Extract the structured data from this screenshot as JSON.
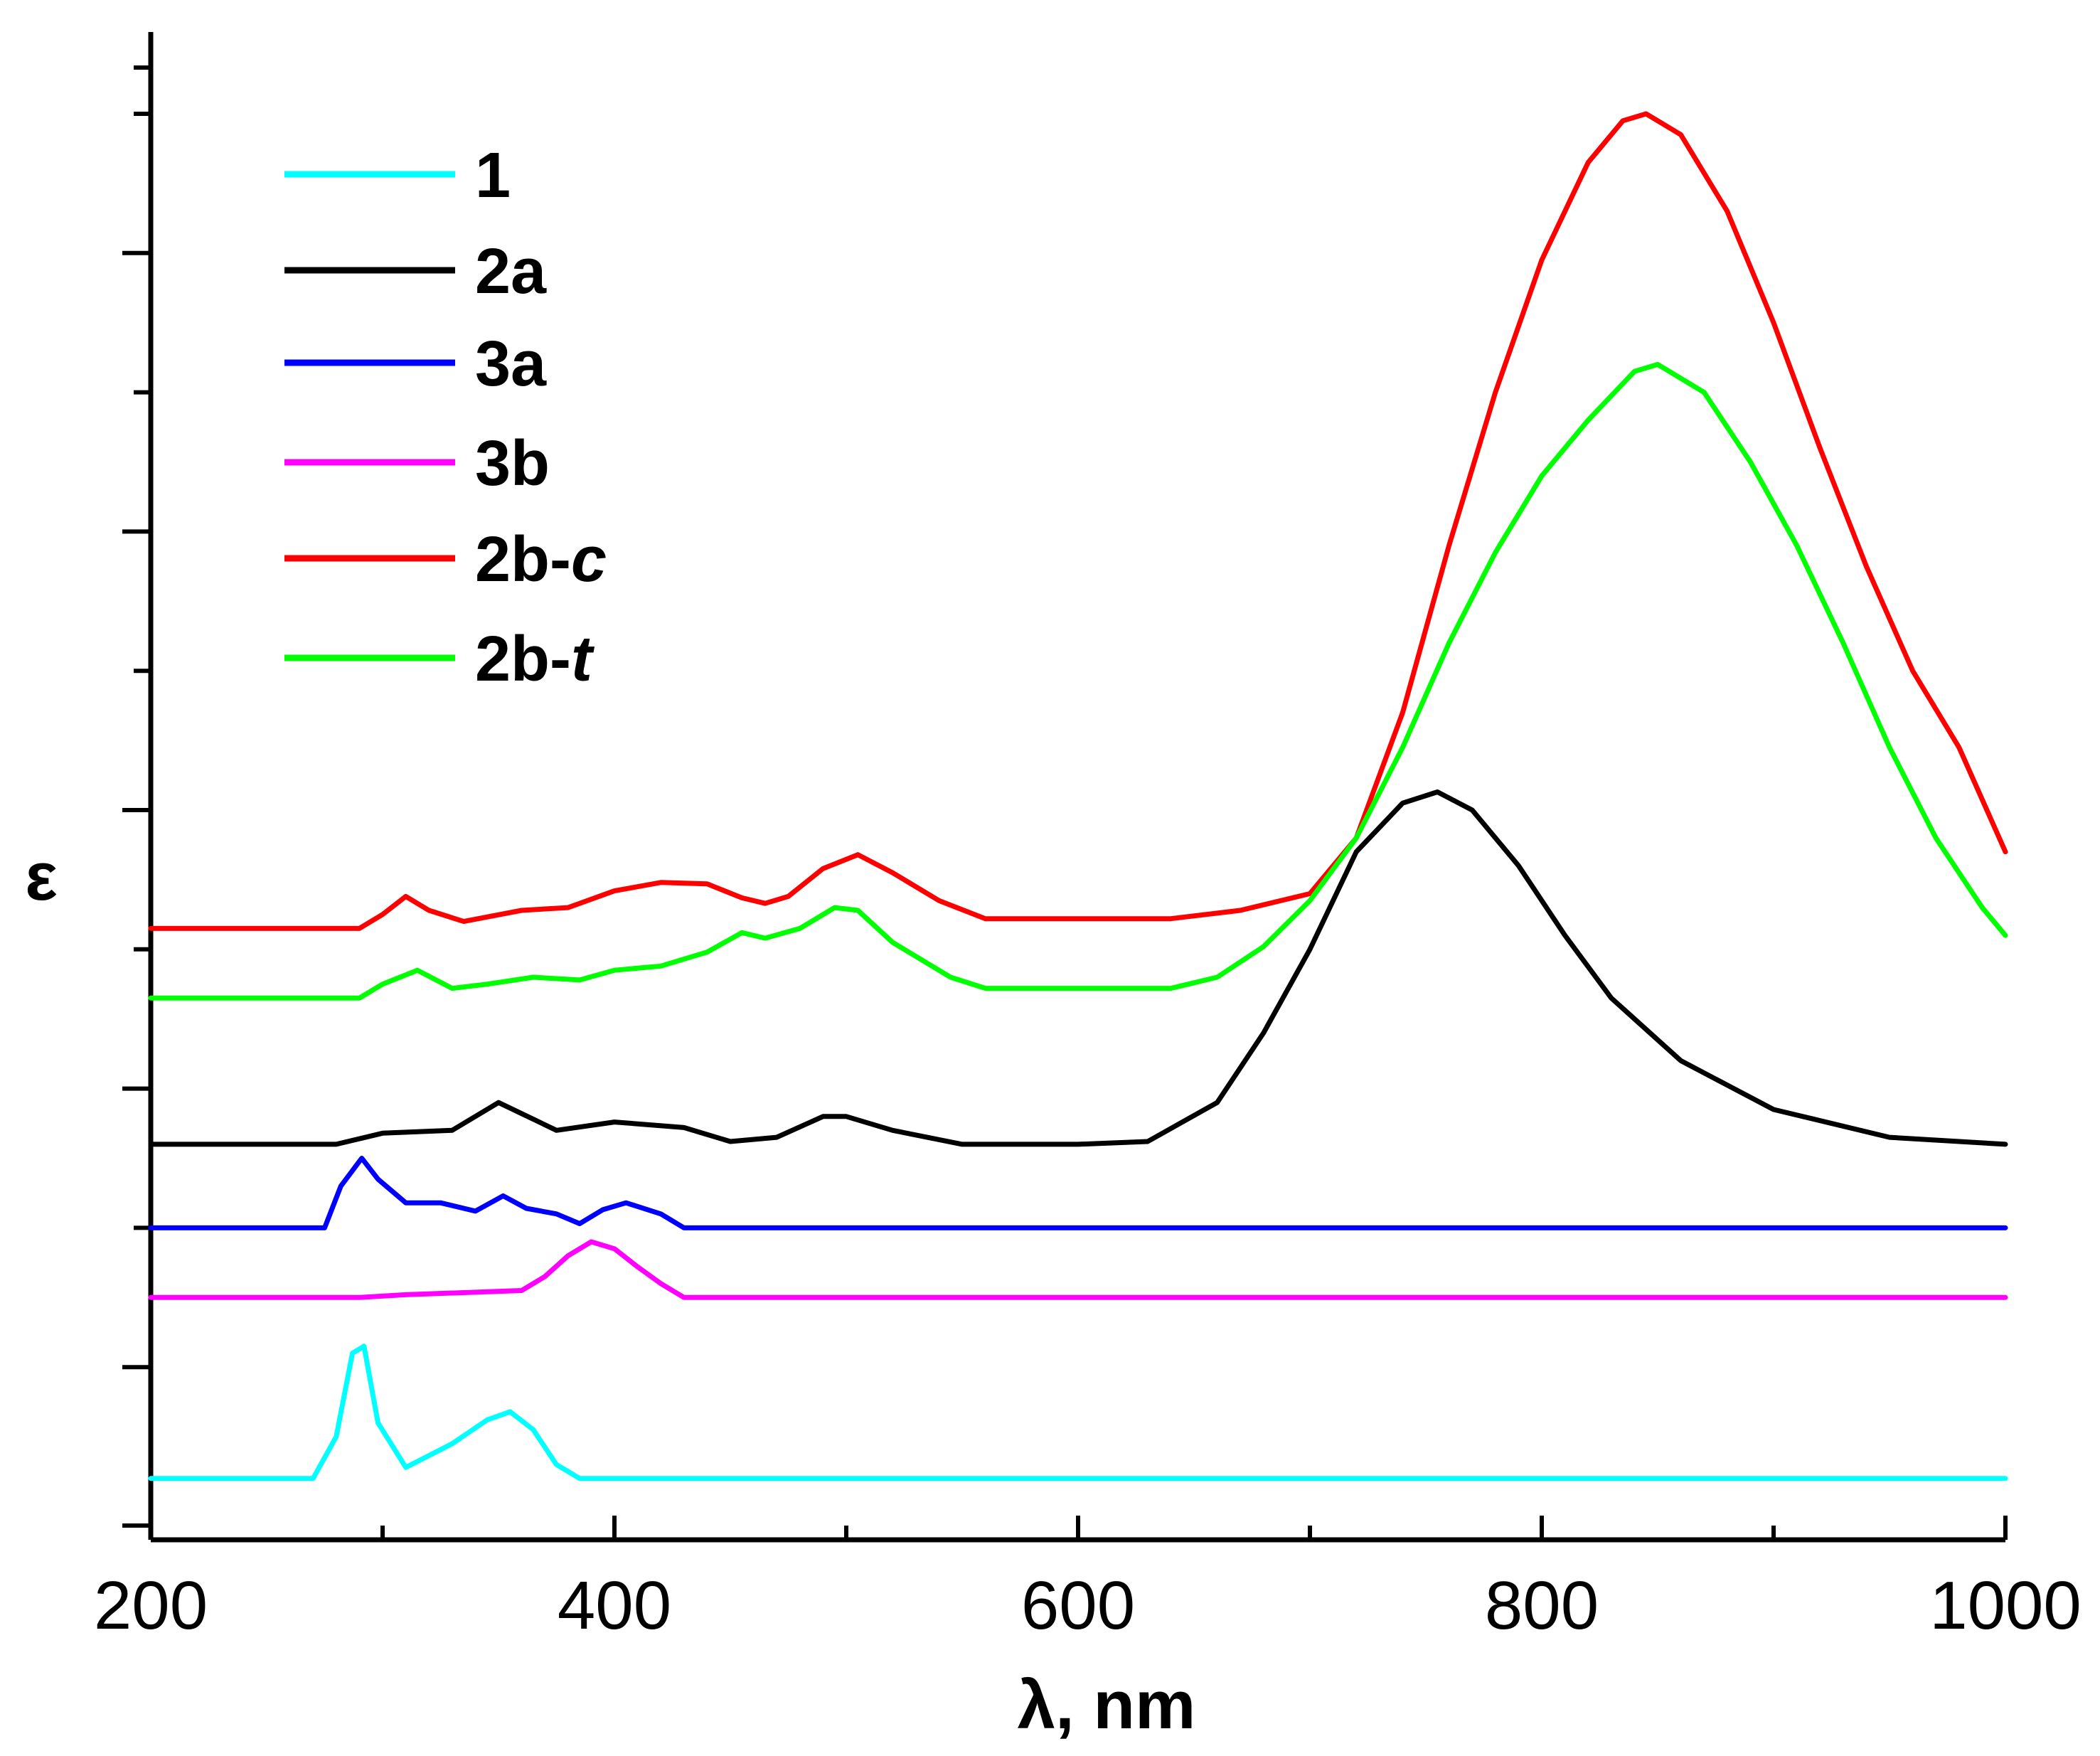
{
  "chart_data": {
    "type": "line",
    "title": "",
    "xlabel": "λ, nm",
    "ylabel": "ε",
    "xlim": [
      200,
      1000
    ],
    "ylim": [
      0,
      10
    ],
    "grid": false,
    "legend_position": "top-left",
    "x_ticks": [
      200,
      400,
      600,
      800,
      1000
    ],
    "x_tick_labels": [
      "200",
      "400",
      "600",
      "800",
      "1000"
    ],
    "y_major_ticks": [
      1.0,
      3.0,
      5.0,
      7.0,
      9.0
    ],
    "y_minor_ticks": [
      2.0,
      4.0,
      6.0,
      8.0,
      10.0
    ],
    "series": [
      {
        "name": "1",
        "label_main": "1",
        "label_suffix": "",
        "color": "#00ffff",
        "points": [
          [
            200,
            0.2
          ],
          [
            270,
            0.2
          ],
          [
            280,
            0.5
          ],
          [
            287,
            1.1
          ],
          [
            292,
            1.15
          ],
          [
            298,
            0.6
          ],
          [
            310,
            0.28
          ],
          [
            330,
            0.45
          ],
          [
            345,
            0.62
          ],
          [
            355,
            0.68
          ],
          [
            365,
            0.55
          ],
          [
            375,
            0.3
          ],
          [
            385,
            0.2
          ],
          [
            1000,
            0.2
          ]
        ]
      },
      {
        "name": "2a",
        "label_main": "2a",
        "label_suffix": "",
        "color": "#000000",
        "points": [
          [
            200,
            2.6
          ],
          [
            280,
            2.6
          ],
          [
            300,
            2.68
          ],
          [
            330,
            2.7
          ],
          [
            350,
            2.9
          ],
          [
            360,
            2.82
          ],
          [
            375,
            2.7
          ],
          [
            400,
            2.76
          ],
          [
            430,
            2.72
          ],
          [
            450,
            2.62
          ],
          [
            470,
            2.65
          ],
          [
            490,
            2.8
          ],
          [
            500,
            2.8
          ],
          [
            520,
            2.7
          ],
          [
            550,
            2.6
          ],
          [
            600,
            2.6
          ],
          [
            630,
            2.62
          ],
          [
            660,
            2.9
          ],
          [
            680,
            3.4
          ],
          [
            700,
            4.0
          ],
          [
            720,
            4.7
          ],
          [
            740,
            5.05
          ],
          [
            755,
            5.13
          ],
          [
            770,
            5.0
          ],
          [
            790,
            4.6
          ],
          [
            810,
            4.1
          ],
          [
            830,
            3.65
          ],
          [
            860,
            3.2
          ],
          [
            900,
            2.85
          ],
          [
            950,
            2.65
          ],
          [
            1000,
            2.6
          ]
        ]
      },
      {
        "name": "3a",
        "label_main": "3a",
        "label_suffix": "",
        "color": "#0000ff",
        "points": [
          [
            200,
            2.0
          ],
          [
            275,
            2.0
          ],
          [
            282,
            2.3
          ],
          [
            291,
            2.5
          ],
          [
            298,
            2.35
          ],
          [
            310,
            2.18
          ],
          [
            325,
            2.18
          ],
          [
            340,
            2.12
          ],
          [
            352,
            2.23
          ],
          [
            362,
            2.14
          ],
          [
            375,
            2.1
          ],
          [
            385,
            2.03
          ],
          [
            395,
            2.13
          ],
          [
            405,
            2.18
          ],
          [
            420,
            2.1
          ],
          [
            430,
            2.0
          ],
          [
            1000,
            2.0
          ]
        ]
      },
      {
        "name": "3b",
        "label_main": "3b",
        "label_suffix": "",
        "color": "#ff00ff",
        "points": [
          [
            200,
            1.5
          ],
          [
            290,
            1.5
          ],
          [
            310,
            1.52
          ],
          [
            360,
            1.55
          ],
          [
            370,
            1.65
          ],
          [
            380,
            1.8
          ],
          [
            390,
            1.9
          ],
          [
            400,
            1.85
          ],
          [
            410,
            1.72
          ],
          [
            420,
            1.6
          ],
          [
            430,
            1.5
          ],
          [
            1000,
            1.5
          ]
        ]
      },
      {
        "name": "2b-c",
        "label_main": "2b-",
        "label_suffix": "c",
        "color": "#ff0000",
        "points": [
          [
            200,
            4.15
          ],
          [
            290,
            4.15
          ],
          [
            300,
            4.25
          ],
          [
            310,
            4.38
          ],
          [
            320,
            4.28
          ],
          [
            335,
            4.2
          ],
          [
            360,
            4.28
          ],
          [
            380,
            4.3
          ],
          [
            400,
            4.42
          ],
          [
            420,
            4.48
          ],
          [
            440,
            4.47
          ],
          [
            455,
            4.37
          ],
          [
            465,
            4.33
          ],
          [
            475,
            4.38
          ],
          [
            490,
            4.58
          ],
          [
            505,
            4.68
          ],
          [
            520,
            4.55
          ],
          [
            540,
            4.35
          ],
          [
            560,
            4.22
          ],
          [
            600,
            4.22
          ],
          [
            640,
            4.22
          ],
          [
            670,
            4.28
          ],
          [
            700,
            4.4
          ],
          [
            720,
            4.8
          ],
          [
            740,
            5.7
          ],
          [
            760,
            6.9
          ],
          [
            780,
            8.0
          ],
          [
            800,
            8.95
          ],
          [
            820,
            9.65
          ],
          [
            835,
            9.95
          ],
          [
            845,
            10.0
          ],
          [
            860,
            9.85
          ],
          [
            880,
            9.3
          ],
          [
            900,
            8.5
          ],
          [
            920,
            7.6
          ],
          [
            940,
            6.75
          ],
          [
            960,
            6.0
          ],
          [
            980,
            5.45
          ],
          [
            1000,
            4.7
          ]
        ]
      },
      {
        "name": "2b-t",
        "label_main": "2b-",
        "label_suffix": "t",
        "color": "#00ff00",
        "points": [
          [
            200,
            3.65
          ],
          [
            290,
            3.65
          ],
          [
            300,
            3.75
          ],
          [
            315,
            3.85
          ],
          [
            330,
            3.72
          ],
          [
            345,
            3.75
          ],
          [
            365,
            3.8
          ],
          [
            385,
            3.78
          ],
          [
            400,
            3.85
          ],
          [
            420,
            3.88
          ],
          [
            440,
            3.98
          ],
          [
            455,
            4.12
          ],
          [
            465,
            4.08
          ],
          [
            480,
            4.15
          ],
          [
            495,
            4.3
          ],
          [
            505,
            4.28
          ],
          [
            520,
            4.05
          ],
          [
            545,
            3.8
          ],
          [
            560,
            3.72
          ],
          [
            600,
            3.72
          ],
          [
            640,
            3.72
          ],
          [
            660,
            3.8
          ],
          [
            680,
            4.02
          ],
          [
            700,
            4.35
          ],
          [
            720,
            4.8
          ],
          [
            740,
            5.45
          ],
          [
            760,
            6.2
          ],
          [
            780,
            6.85
          ],
          [
            800,
            7.4
          ],
          [
            820,
            7.8
          ],
          [
            840,
            8.15
          ],
          [
            850,
            8.2
          ],
          [
            870,
            8.0
          ],
          [
            890,
            7.5
          ],
          [
            910,
            6.9
          ],
          [
            930,
            6.2
          ],
          [
            950,
            5.45
          ],
          [
            970,
            4.8
          ],
          [
            990,
            4.3
          ],
          [
            1000,
            4.1
          ]
        ]
      }
    ]
  }
}
